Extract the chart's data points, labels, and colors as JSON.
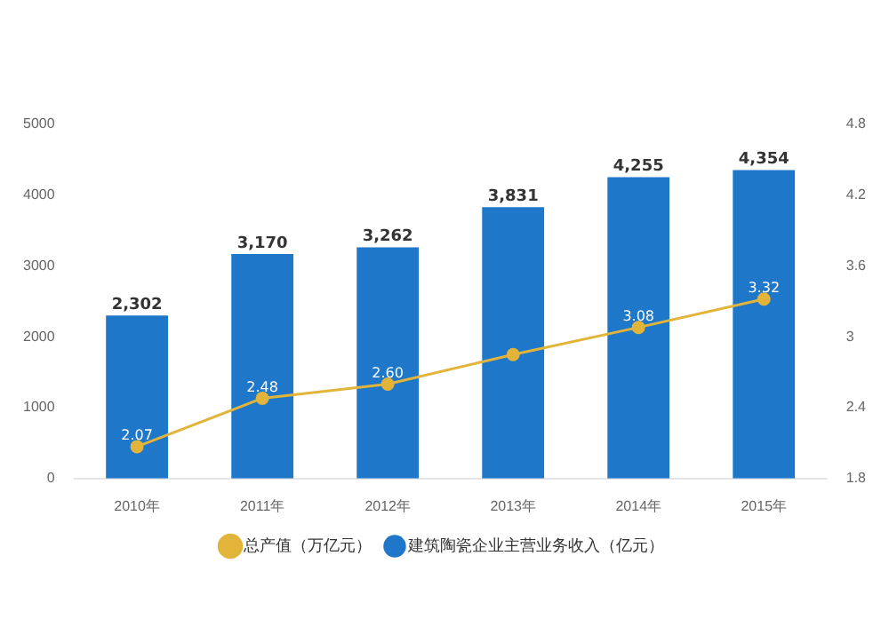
{
  "chart_data": {
    "type": "bar",
    "categories": [
      "2010年",
      "2011年",
      "2012年",
      "2013年",
      "2014年",
      "2015年"
    ],
    "series": [
      {
        "name": "建筑陶瓷企业主营业务收入（亿元）",
        "color": "#1f77c9",
        "values": [
          2302,
          3170,
          3262,
          3831,
          4255,
          4354
        ],
        "value_labels": [
          "2,302",
          "3,170",
          "3,262",
          "3,831",
          "4,255",
          "4,354"
        ]
      },
      {
        "name": "总产值（万亿元）",
        "type": "line",
        "axis": "y2",
        "color": "#e2b43a",
        "marker": "circle",
        "values": [
          2.07,
          2.48,
          2.6,
          2.85,
          3.08,
          3.32
        ],
        "value_labels": [
          "2.07",
          "2.48",
          "2.60",
          null,
          "3.08",
          "3.32"
        ]
      }
    ],
    "ylim": [
      0,
      5000
    ],
    "yticks": [
      0,
      1000,
      2000,
      3000,
      4000,
      5000
    ],
    "y2lim": [
      1.8,
      4.8
    ],
    "y2ticks": [
      1.8,
      2.4,
      3.0,
      3.6,
      4.2,
      4.8
    ],
    "grid": false,
    "legend": "bottom"
  }
}
